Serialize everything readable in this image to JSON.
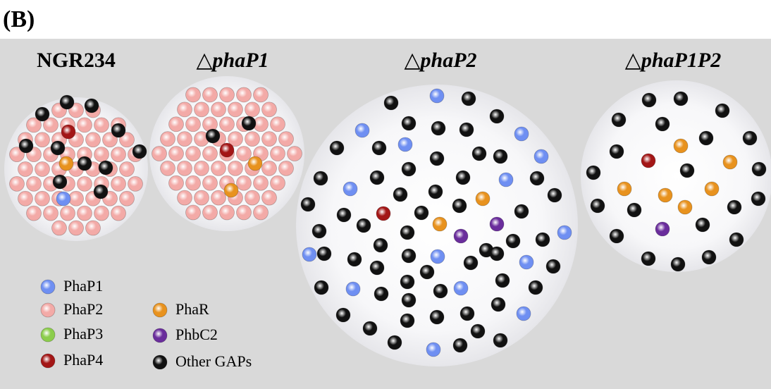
{
  "panel_label": "(B)",
  "strains": [
    {
      "label": "NGR234"
    },
    {
      "delta": "△",
      "label": "phaP1"
    },
    {
      "delta": "△",
      "label": "phaP2"
    },
    {
      "delta": "△",
      "label": "phaP1P2"
    }
  ],
  "legend": [
    {
      "label": "PhaP1",
      "color": "#6f8ff2"
    },
    {
      "label": "PhaP2",
      "color": "#f3aaa7"
    },
    {
      "label": "PhaP3",
      "color": "#8ccd4c"
    },
    {
      "label": "PhaP4",
      "color": "#a31616"
    },
    {
      "label": "PhaR",
      "color": "#e8921e"
    },
    {
      "label": "PhbC2",
      "color": "#6a2d9c"
    },
    {
      "label": "Other GAPs",
      "color": "#111111"
    }
  ]
}
